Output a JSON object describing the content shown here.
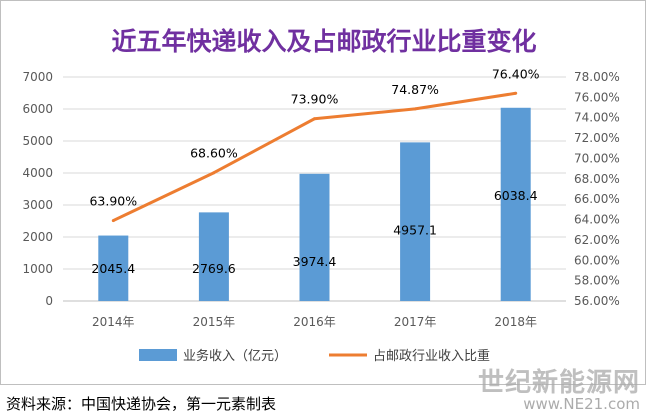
{
  "chart_data": {
    "type": "bar",
    "title": "近五年快递收入及占邮政行业比重变化",
    "categories": [
      "2014年",
      "2015年",
      "2016年",
      "2017年",
      "2018年"
    ],
    "series": [
      {
        "name": "业务收入（亿元）",
        "type": "bar",
        "axis": "left",
        "values": [
          2045.4,
          2769.6,
          3974.4,
          4957.1,
          6038.4
        ],
        "labels": [
          "2045.4",
          "2769.6",
          "3974.4",
          "4957.1",
          "6038.4"
        ]
      },
      {
        "name": "占邮政行业收入比重",
        "type": "line",
        "axis": "right",
        "values": [
          63.9,
          68.6,
          73.9,
          74.87,
          76.4
        ],
        "labels": [
          "63.90%",
          "68.60%",
          "73.90%",
          "74.87%",
          "76.40%"
        ]
      }
    ],
    "y_left": {
      "min": 0,
      "max": 7000,
      "ticks": [
        0,
        1000,
        2000,
        3000,
        4000,
        5000,
        6000,
        7000
      ],
      "tick_labels": [
        "0",
        "1000",
        "2000",
        "3000",
        "4000",
        "5000",
        "6000",
        "7000"
      ]
    },
    "y_right": {
      "min": 56,
      "max": 78,
      "ticks": [
        56,
        58,
        60,
        62,
        64,
        66,
        68,
        70,
        72,
        74,
        76,
        78
      ],
      "tick_labels": [
        "56.00%",
        "58.00%",
        "60.00%",
        "62.00%",
        "64.00%",
        "66.00%",
        "68.00%",
        "70.00%",
        "72.00%",
        "74.00%",
        "76.00%",
        "78.00%"
      ]
    },
    "grid": true,
    "legend_position": "bottom",
    "colors": {
      "bar": "#5b9bd5",
      "line": "#ed7d31",
      "title": "#7030a0",
      "grid": "#d9d9d9"
    }
  },
  "source_note": "资料来源：中国快递协会，第一元素制表",
  "watermark": {
    "cn": "世纪新能源网",
    "url": "www.NE21.com"
  }
}
